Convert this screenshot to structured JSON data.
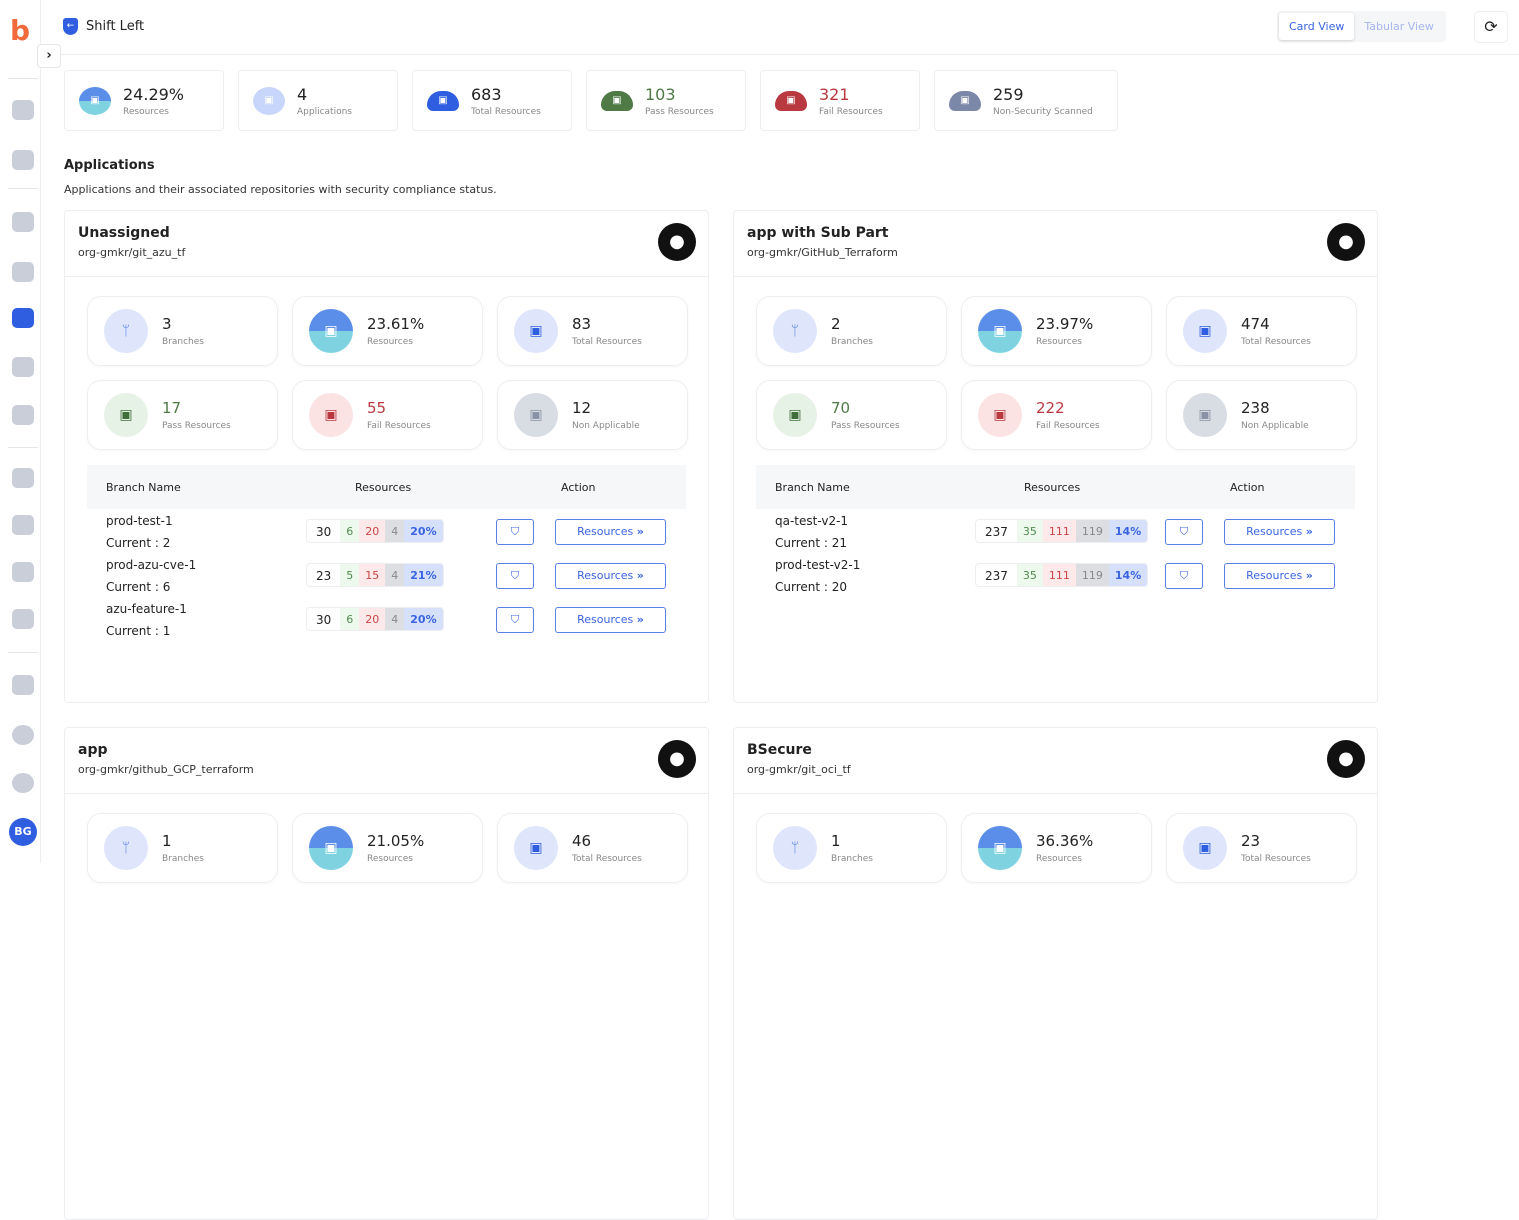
{
  "header": {
    "title": "Shift Left",
    "views": [
      "Card View",
      "Tabular View"
    ],
    "active_view": "Card View",
    "avatar": "BG"
  },
  "summary": [
    {
      "value": "24.29%",
      "label": "Resources",
      "icon": "resources-donut-icon",
      "color": "#222"
    },
    {
      "value": "4",
      "label": "Applications",
      "icon": "applications-icon",
      "color": "#222"
    },
    {
      "value": "683",
      "label": "Total Resources",
      "icon": "cloud-blue-icon",
      "color": "#222"
    },
    {
      "value": "103",
      "label": "Pass Resources",
      "icon": "cloud-green-icon",
      "color": "#4f7a46"
    },
    {
      "value": "321",
      "label": "Fail Resources",
      "icon": "cloud-red-icon",
      "color": "#b8393f"
    },
    {
      "value": "259",
      "label": "Non-Security Scanned",
      "icon": "cloud-grey-icon",
      "color": "#222"
    }
  ],
  "section": {
    "title": "Applications",
    "description": "Applications and their associated repositories with security compliance status."
  },
  "table_headers": [
    "Branch Name",
    "Resources",
    "Action"
  ],
  "resources_button": "Resources",
  "colors": {
    "accent": "#3a64e0",
    "pass": "#4f8a4f",
    "fail": "#c44444",
    "na": "#888888"
  },
  "apps": [
    {
      "name": "Unassigned",
      "repo": "org-gmkr/git_azu_tf",
      "tiles": [
        {
          "value": "3",
          "label": "Branches"
        },
        {
          "value": "23.61%",
          "label": "Resources"
        },
        {
          "value": "83",
          "label": "Total Resources"
        },
        {
          "value": "17",
          "label": "Pass Resources"
        },
        {
          "value": "55",
          "label": "Fail Resources"
        },
        {
          "value": "12",
          "label": "Non Applicable"
        }
      ],
      "branches": [
        {
          "name": "prod-test-1",
          "current": "Current : 2",
          "total": "30",
          "pass": "6",
          "fail": "20",
          "na": "4",
          "pct": "20%"
        },
        {
          "name": "prod-azu-cve-1",
          "current": "Current : 6",
          "total": "23",
          "pass": "5",
          "fail": "15",
          "na": "4",
          "pct": "21%"
        },
        {
          "name": "azu-feature-1",
          "current": "Current : 1",
          "total": "30",
          "pass": "6",
          "fail": "20",
          "na": "4",
          "pct": "20%"
        }
      ]
    },
    {
      "name": "app with Sub Part",
      "repo": "org-gmkr/GitHub_Terraform",
      "tiles": [
        {
          "value": "2",
          "label": "Branches"
        },
        {
          "value": "23.97%",
          "label": "Resources"
        },
        {
          "value": "474",
          "label": "Total Resources"
        },
        {
          "value": "70",
          "label": "Pass Resources"
        },
        {
          "value": "222",
          "label": "Fail Resources"
        },
        {
          "value": "238",
          "label": "Non Applicable"
        }
      ],
      "branches": [
        {
          "name": "qa-test-v2-1",
          "current": "Current : 21",
          "total": "237",
          "pass": "35",
          "fail": "111",
          "na": "119",
          "pct": "14%"
        },
        {
          "name": "prod-test-v2-1",
          "current": "Current : 20",
          "total": "237",
          "pass": "35",
          "fail": "111",
          "na": "119",
          "pct": "14%"
        }
      ]
    },
    {
      "name": "app",
      "repo": "org-gmkr/github_GCP_terraform",
      "tiles": [
        {
          "value": "1",
          "label": "Branches"
        },
        {
          "value": "21.05%",
          "label": "Resources"
        },
        {
          "value": "46",
          "label": "Total Resources"
        }
      ],
      "branches": []
    },
    {
      "name": "BSecure",
      "repo": "org-gmkr/git_oci_tf",
      "tiles": [
        {
          "value": "1",
          "label": "Branches"
        },
        {
          "value": "36.36%",
          "label": "Resources"
        },
        {
          "value": "23",
          "label": "Total Resources"
        }
      ],
      "branches": []
    }
  ]
}
